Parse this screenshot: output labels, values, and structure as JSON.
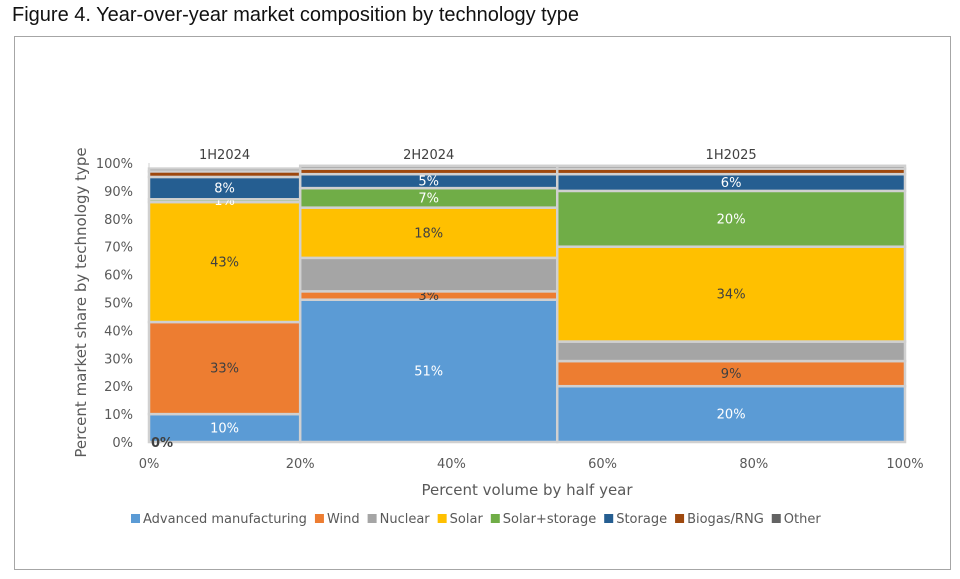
{
  "figure": {
    "caption": "Figure 4. Year-over-year market composition by technology type"
  },
  "chart_data": {
    "type": "bar",
    "subtype": "marimekko",
    "title": "",
    "xlabel": "Percent volume by  half year",
    "ylabel": "Percent market share by technology type",
    "xlim": [
      0,
      100
    ],
    "ylim": [
      0,
      100
    ],
    "x_ticks": [
      "0%",
      "20%",
      "40%",
      "60%",
      "80%",
      "100%"
    ],
    "y_ticks": [
      "0%",
      "10%",
      "20%",
      "30%",
      "40%",
      "50%",
      "60%",
      "70%",
      "80%",
      "90%",
      "100%"
    ],
    "grid": false,
    "legend_position": "bottom",
    "series": [
      {
        "name": "Advanced manufacturing",
        "color": "#5b9bd5"
      },
      {
        "name": "Wind",
        "color": "#ed7d31"
      },
      {
        "name": "Nuclear",
        "color": "#a5a5a5"
      },
      {
        "name": "Solar",
        "color": "#ffc000"
      },
      {
        "name": "Solar+storage",
        "color": "#70ad47"
      },
      {
        "name": "Storage",
        "color": "#255e91"
      },
      {
        "name": "Biogas/RNG",
        "color": "#9e480e"
      },
      {
        "name": "Other",
        "color": "#636363"
      }
    ],
    "columns": [
      {
        "label": "1H2024",
        "x_start": 0,
        "width": 20,
        "values": [
          10,
          33,
          0,
          43,
          1,
          8,
          2,
          1
        ],
        "labels": [
          "10%",
          "33%",
          "",
          "43%",
          "1%",
          "8%",
          "",
          ""
        ]
      },
      {
        "label": "2H2024",
        "x_start": 20,
        "width": 34,
        "values": [
          51,
          3,
          12,
          18,
          7,
          5,
          2,
          1
        ],
        "labels": [
          "51%",
          "3%",
          "",
          "18%",
          "7%",
          "5%",
          "",
          ""
        ]
      },
      {
        "label": "1H2025",
        "x_start": 54,
        "width": 46,
        "values": [
          20,
          9,
          7,
          34,
          20,
          6,
          2,
          1
        ],
        "labels": [
          "20%",
          "9%",
          "",
          "34%",
          "20%",
          "6%",
          "",
          ""
        ]
      }
    ],
    "extra_labels": [
      "0%"
    ]
  }
}
